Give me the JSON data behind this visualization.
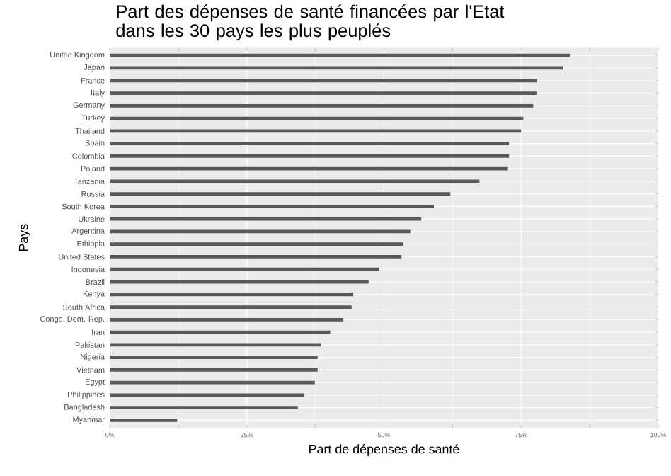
{
  "chart_data": {
    "type": "bar",
    "orientation": "horizontal",
    "title": "Part des dépenses de santé financées par l'Etat dans les 30 pays les plus peuplés",
    "xlabel": "Part de dépenses de santé",
    "ylabel": "Pays",
    "categories": [
      "United Kingdom",
      "Japan",
      "France",
      "Italy",
      "Germany",
      "Turkey",
      "Thailand",
      "Spain",
      "Colombia",
      "Poland",
      "Tanzania",
      "Russia",
      "South Korea",
      "Ukraine",
      "Argentina",
      "Ethiopia",
      "United States",
      "Indonesia",
      "Brazil",
      "Kenya",
      "South Africa",
      "Congo, Dem. Rep.",
      "Iran",
      "Pakistan",
      "Nigeria",
      "Vietnam",
      "Egypt",
      "Philippines",
      "Bangladesh",
      "Myanmar"
    ],
    "values": [
      84.0,
      82.6,
      77.9,
      77.8,
      77.2,
      75.4,
      75.0,
      72.8,
      72.8,
      72.6,
      67.4,
      62.1,
      59.1,
      56.8,
      54.8,
      53.5,
      53.2,
      49.1,
      47.2,
      44.4,
      44.1,
      42.6,
      40.2,
      38.5,
      37.9,
      37.9,
      37.4,
      35.5,
      34.3,
      12.3
    ],
    "color": "#595959",
    "xlim": [
      0,
      100
    ],
    "xticks": [
      {
        "value": 0,
        "label": "0%"
      },
      {
        "value": 25,
        "label": "25%"
      },
      {
        "value": 50,
        "label": "50%"
      },
      {
        "value": 75,
        "label": "75%"
      },
      {
        "value": 100,
        "label": "100%"
      }
    ],
    "grid": true
  }
}
